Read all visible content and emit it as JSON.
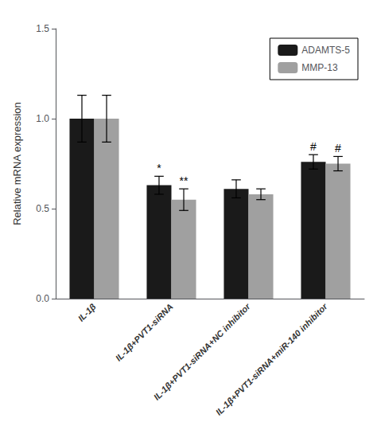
{
  "chart_data": {
    "type": "bar",
    "categories": [
      "IL-1β",
      "IL-1β+PVT1-siRNA",
      "IL-1β+PVT1-siRNA+NC inhibitor",
      "IL-1β+PVT1-siRNA+miR-140 inhibitor"
    ],
    "ylabel": "Relative mRNA expression",
    "series": [
      {
        "name": "ADAMTS-5",
        "color": "#1a1a1a",
        "values": [
          1.0,
          0.63,
          0.61,
          0.76
        ],
        "errors": [
          0.13,
          0.05,
          0.05,
          0.04
        ],
        "annotations": [
          null,
          "*",
          null,
          "#"
        ]
      },
      {
        "name": "MMP-13",
        "color": "#a0a0a0",
        "values": [
          1.0,
          0.55,
          0.58,
          0.75
        ],
        "errors": [
          0.13,
          0.06,
          0.03,
          0.04
        ],
        "annotations": [
          null,
          "**",
          null,
          "#"
        ]
      }
    ],
    "ylim": [
      0.0,
      1.5
    ],
    "yticks": [
      {
        "value": 0.0,
        "label": "0.0"
      },
      0.5,
      {
        "value": 1.0,
        "label": "1.0"
      },
      1.5
    ],
    "grid": false,
    "legend": "upper right"
  }
}
